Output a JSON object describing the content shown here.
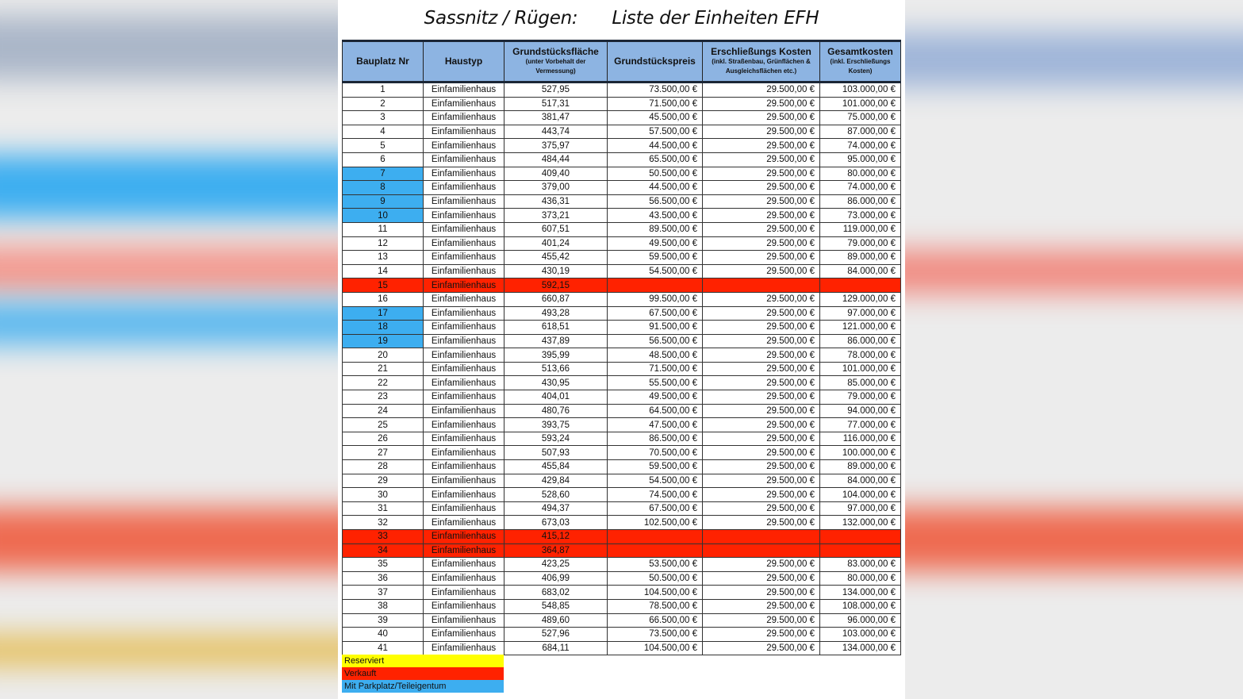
{
  "title": {
    "location": "Sassnitz / Rügen:",
    "subject": "Liste der Einheiten EFH"
  },
  "colors": {
    "header": "#8db4e2",
    "reserved": "#ffff00",
    "sold": "#ff2200",
    "parking": "#3daef0"
  },
  "columns": [
    {
      "label": "Bauplatz Nr",
      "note": ""
    },
    {
      "label": "Haustyp",
      "note": ""
    },
    {
      "label": "Grundstücksfläche",
      "note": "(unter Vorbehalt der Vermessung)"
    },
    {
      "label": "Grundstückspreis",
      "note": ""
    },
    {
      "label": "Erschließungs Kosten",
      "note": "(inkl. Straßenbau, Grünflächen & Ausgleichsflächen etc.)"
    },
    {
      "label": "Gesamtkosten",
      "note": "(inkl. Erschließungs Kosten)"
    }
  ],
  "rows": [
    {
      "nr": "1",
      "typ": "Einfamilienhaus",
      "flaeche": "527,95",
      "preis": "73.500,00 €",
      "erschl": "29.500,00 €",
      "gesamt": "103.000,00 €",
      "status": ""
    },
    {
      "nr": "2",
      "typ": "Einfamilienhaus",
      "flaeche": "517,31",
      "preis": "71.500,00 €",
      "erschl": "29.500,00 €",
      "gesamt": "101.000,00 €",
      "status": ""
    },
    {
      "nr": "3",
      "typ": "Einfamilienhaus",
      "flaeche": "381,47",
      "preis": "45.500,00 €",
      "erschl": "29.500,00 €",
      "gesamt": "75.000,00 €",
      "status": ""
    },
    {
      "nr": "4",
      "typ": "Einfamilienhaus",
      "flaeche": "443,74",
      "preis": "57.500,00 €",
      "erschl": "29.500,00 €",
      "gesamt": "87.000,00 €",
      "status": ""
    },
    {
      "nr": "5",
      "typ": "Einfamilienhaus",
      "flaeche": "375,97",
      "preis": "44.500,00 €",
      "erschl": "29.500,00 €",
      "gesamt": "74.000,00 €",
      "status": ""
    },
    {
      "nr": "6",
      "typ": "Einfamilienhaus",
      "flaeche": "484,44",
      "preis": "65.500,00 €",
      "erschl": "29.500,00 €",
      "gesamt": "95.000,00 €",
      "status": ""
    },
    {
      "nr": "7",
      "typ": "Einfamilienhaus",
      "flaeche": "409,40",
      "preis": "50.500,00 €",
      "erschl": "29.500,00 €",
      "gesamt": "80.000,00 €",
      "status": "parking"
    },
    {
      "nr": "8",
      "typ": "Einfamilienhaus",
      "flaeche": "379,00",
      "preis": "44.500,00 €",
      "erschl": "29.500,00 €",
      "gesamt": "74.000,00 €",
      "status": "parking"
    },
    {
      "nr": "9",
      "typ": "Einfamilienhaus",
      "flaeche": "436,31",
      "preis": "56.500,00 €",
      "erschl": "29.500,00 €",
      "gesamt": "86.000,00 €",
      "status": "parking"
    },
    {
      "nr": "10",
      "typ": "Einfamilienhaus",
      "flaeche": "373,21",
      "preis": "43.500,00 €",
      "erschl": "29.500,00 €",
      "gesamt": "73.000,00 €",
      "status": "parking"
    },
    {
      "nr": "11",
      "typ": "Einfamilienhaus",
      "flaeche": "607,51",
      "preis": "89.500,00 €",
      "erschl": "29.500,00 €",
      "gesamt": "119.000,00 €",
      "status": ""
    },
    {
      "nr": "12",
      "typ": "Einfamilienhaus",
      "flaeche": "401,24",
      "preis": "49.500,00 €",
      "erschl": "29.500,00 €",
      "gesamt": "79.000,00 €",
      "status": ""
    },
    {
      "nr": "13",
      "typ": "Einfamilienhaus",
      "flaeche": "455,42",
      "preis": "59.500,00 €",
      "erschl": "29.500,00 €",
      "gesamt": "89.000,00 €",
      "status": ""
    },
    {
      "nr": "14",
      "typ": "Einfamilienhaus",
      "flaeche": "430,19",
      "preis": "54.500,00 €",
      "erschl": "29.500,00 €",
      "gesamt": "84.000,00 €",
      "status": ""
    },
    {
      "nr": "15",
      "typ": "Einfamilienhaus",
      "flaeche": "592,15",
      "preis": "",
      "erschl": "",
      "gesamt": "",
      "status": "sold"
    },
    {
      "nr": "16",
      "typ": "Einfamilienhaus",
      "flaeche": "660,87",
      "preis": "99.500,00 €",
      "erschl": "29.500,00 €",
      "gesamt": "129.000,00 €",
      "status": ""
    },
    {
      "nr": "17",
      "typ": "Einfamilienhaus",
      "flaeche": "493,28",
      "preis": "67.500,00 €",
      "erschl": "29.500,00 €",
      "gesamt": "97.000,00 €",
      "status": "parking"
    },
    {
      "nr": "18",
      "typ": "Einfamilienhaus",
      "flaeche": "618,51",
      "preis": "91.500,00 €",
      "erschl": "29.500,00 €",
      "gesamt": "121.000,00 €",
      "status": "parking"
    },
    {
      "nr": "19",
      "typ": "Einfamilienhaus",
      "flaeche": "437,89",
      "preis": "56.500,00 €",
      "erschl": "29.500,00 €",
      "gesamt": "86.000,00 €",
      "status": "parking"
    },
    {
      "nr": "20",
      "typ": "Einfamilienhaus",
      "flaeche": "395,99",
      "preis": "48.500,00 €",
      "erschl": "29.500,00 €",
      "gesamt": "78.000,00 €",
      "status": ""
    },
    {
      "nr": "21",
      "typ": "Einfamilienhaus",
      "flaeche": "513,66",
      "preis": "71.500,00 €",
      "erschl": "29.500,00 €",
      "gesamt": "101.000,00 €",
      "status": ""
    },
    {
      "nr": "22",
      "typ": "Einfamilienhaus",
      "flaeche": "430,95",
      "preis": "55.500,00 €",
      "erschl": "29.500,00 €",
      "gesamt": "85.000,00 €",
      "status": ""
    },
    {
      "nr": "23",
      "typ": "Einfamilienhaus",
      "flaeche": "404,01",
      "preis": "49.500,00 €",
      "erschl": "29.500,00 €",
      "gesamt": "79.000,00 €",
      "status": ""
    },
    {
      "nr": "24",
      "typ": "Einfamilienhaus",
      "flaeche": "480,76",
      "preis": "64.500,00 €",
      "erschl": "29.500,00 €",
      "gesamt": "94.000,00 €",
      "status": ""
    },
    {
      "nr": "25",
      "typ": "Einfamilienhaus",
      "flaeche": "393,75",
      "preis": "47.500,00 €",
      "erschl": "29.500,00 €",
      "gesamt": "77.000,00 €",
      "status": ""
    },
    {
      "nr": "26",
      "typ": "Einfamilienhaus",
      "flaeche": "593,24",
      "preis": "86.500,00 €",
      "erschl": "29.500,00 €",
      "gesamt": "116.000,00 €",
      "status": ""
    },
    {
      "nr": "27",
      "typ": "Einfamilienhaus",
      "flaeche": "507,93",
      "preis": "70.500,00 €",
      "erschl": "29.500,00 €",
      "gesamt": "100.000,00 €",
      "status": ""
    },
    {
      "nr": "28",
      "typ": "Einfamilienhaus",
      "flaeche": "455,84",
      "preis": "59.500,00 €",
      "erschl": "29.500,00 €",
      "gesamt": "89.000,00 €",
      "status": ""
    },
    {
      "nr": "29",
      "typ": "Einfamilienhaus",
      "flaeche": "429,84",
      "preis": "54.500,00 €",
      "erschl": "29.500,00 €",
      "gesamt": "84.000,00 €",
      "status": ""
    },
    {
      "nr": "30",
      "typ": "Einfamilienhaus",
      "flaeche": "528,60",
      "preis": "74.500,00 €",
      "erschl": "29.500,00 €",
      "gesamt": "104.000,00 €",
      "status": ""
    },
    {
      "nr": "31",
      "typ": "Einfamilienhaus",
      "flaeche": "494,37",
      "preis": "67.500,00 €",
      "erschl": "29.500,00 €",
      "gesamt": "97.000,00 €",
      "status": ""
    },
    {
      "nr": "32",
      "typ": "Einfamilienhaus",
      "flaeche": "673,03",
      "preis": "102.500,00 €",
      "erschl": "29.500,00 €",
      "gesamt": "132.000,00 €",
      "status": ""
    },
    {
      "nr": "33",
      "typ": "Einfamilienhaus",
      "flaeche": "415,12",
      "preis": "",
      "erschl": "",
      "gesamt": "",
      "status": "sold"
    },
    {
      "nr": "34",
      "typ": "Einfamilienhaus",
      "flaeche": "364,87",
      "preis": "",
      "erschl": "",
      "gesamt": "",
      "status": "sold"
    },
    {
      "nr": "35",
      "typ": "Einfamilienhaus",
      "flaeche": "423,25",
      "preis": "53.500,00 €",
      "erschl": "29.500,00 €",
      "gesamt": "83.000,00 €",
      "status": ""
    },
    {
      "nr": "36",
      "typ": "Einfamilienhaus",
      "flaeche": "406,99",
      "preis": "50.500,00 €",
      "erschl": "29.500,00 €",
      "gesamt": "80.000,00 €",
      "status": ""
    },
    {
      "nr": "37",
      "typ": "Einfamilienhaus",
      "flaeche": "683,02",
      "preis": "104.500,00 €",
      "erschl": "29.500,00 €",
      "gesamt": "134.000,00 €",
      "status": ""
    },
    {
      "nr": "38",
      "typ": "Einfamilienhaus",
      "flaeche": "548,85",
      "preis": "78.500,00 €",
      "erschl": "29.500,00 €",
      "gesamt": "108.000,00 €",
      "status": ""
    },
    {
      "nr": "39",
      "typ": "Einfamilienhaus",
      "flaeche": "489,60",
      "preis": "66.500,00 €",
      "erschl": "29.500,00 €",
      "gesamt": "96.000,00 €",
      "status": ""
    },
    {
      "nr": "40",
      "typ": "Einfamilienhaus",
      "flaeche": "527,96",
      "preis": "73.500,00 €",
      "erschl": "29.500,00 €",
      "gesamt": "103.000,00 €",
      "status": ""
    },
    {
      "nr": "41",
      "typ": "Einfamilienhaus",
      "flaeche": "684,11",
      "preis": "104.500,00 €",
      "erschl": "29.500,00 €",
      "gesamt": "134.000,00 €",
      "status": ""
    }
  ],
  "legend": [
    {
      "label": "Reserviert",
      "color": "#ffff00"
    },
    {
      "label": "Verkauft",
      "color": "#ff2200"
    },
    {
      "label": "Mit Parkplatz/Teileigentum",
      "color": "#3daef0"
    }
  ]
}
